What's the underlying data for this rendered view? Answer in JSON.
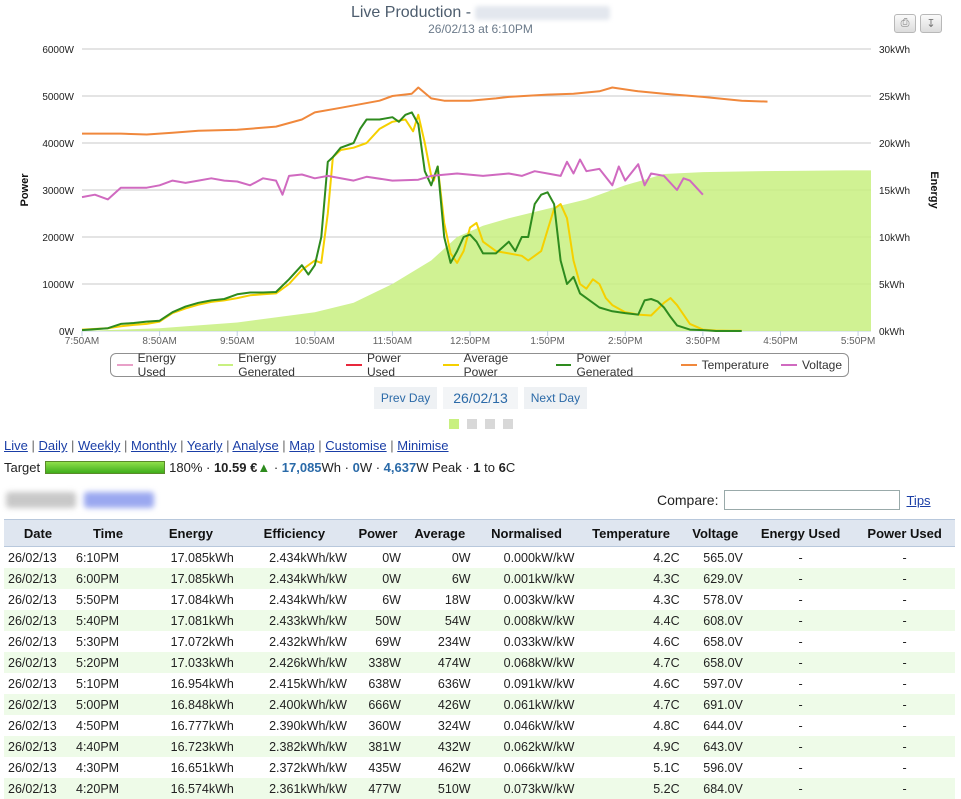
{
  "chart_header": {
    "title": "Live Production -",
    "subtitle": "26/02/13 at 6:10PM"
  },
  "chart_data": {
    "type": "line",
    "x_ticks": [
      "7:50AM",
      "8:50AM",
      "9:50AM",
      "10:50AM",
      "11:50AM",
      "12:50PM",
      "1:50PM",
      "2:50PM",
      "3:50PM",
      "4:50PM",
      "5:50PM"
    ],
    "x_range_min": [
      470,
      1080
    ],
    "y_left": {
      "label": "Power",
      "ticks": [
        "0W",
        "1000W",
        "2000W",
        "3000W",
        "4000W",
        "5000W",
        "6000W"
      ],
      "range": [
        0,
        6000
      ]
    },
    "y_right": {
      "label": "Energy",
      "ticks": [
        "0kWh",
        "5kWh",
        "10kWh",
        "15kWh",
        "20kWh",
        "25kWh",
        "30kWh"
      ],
      "range": [
        0,
        30
      ]
    },
    "grid": true,
    "legend_position": "bottom",
    "series": [
      {
        "name": "Energy Used",
        "axis": "right",
        "color": "#e8a0c8",
        "points": []
      },
      {
        "name": "Energy Generated",
        "axis": "right",
        "color": "#c8f080",
        "fill": true,
        "points": [
          [
            470,
            0
          ],
          [
            530,
            0.3
          ],
          [
            590,
            0.9
          ],
          [
            650,
            2.0
          ],
          [
            680,
            3.0
          ],
          [
            710,
            5.0
          ],
          [
            740,
            7.5
          ],
          [
            760,
            10.0
          ],
          [
            780,
            11.2
          ],
          [
            800,
            12.0
          ],
          [
            830,
            13.0
          ],
          [
            860,
            14.0
          ],
          [
            890,
            15.5
          ],
          [
            920,
            16.7
          ],
          [
            950,
            16.9
          ],
          [
            990,
            17.0
          ],
          [
            1030,
            17.05
          ],
          [
            1060,
            17.08
          ],
          [
            1080,
            17.085
          ]
        ]
      },
      {
        "name": "Power Used",
        "axis": "left",
        "color": "#e8283c",
        "points": []
      },
      {
        "name": "Average Power",
        "axis": "left",
        "color": "#f5d000",
        "points": [
          [
            470,
            30
          ],
          [
            490,
            60
          ],
          [
            500,
            100
          ],
          [
            510,
            130
          ],
          [
            520,
            150
          ],
          [
            530,
            200
          ],
          [
            540,
            380
          ],
          [
            550,
            480
          ],
          [
            560,
            560
          ],
          [
            570,
            620
          ],
          [
            580,
            650
          ],
          [
            590,
            700
          ],
          [
            600,
            760
          ],
          [
            610,
            780
          ],
          [
            620,
            800
          ],
          [
            630,
            1000
          ],
          [
            640,
            1300
          ],
          [
            650,
            1500
          ],
          [
            655,
            1450
          ],
          [
            660,
            2500
          ],
          [
            664,
            3700
          ],
          [
            670,
            3850
          ],
          [
            680,
            3900
          ],
          [
            690,
            4000
          ],
          [
            700,
            4300
          ],
          [
            710,
            4450
          ],
          [
            720,
            4500
          ],
          [
            726,
            4250
          ],
          [
            730,
            4600
          ],
          [
            735,
            4000
          ],
          [
            740,
            3300
          ],
          [
            742,
            3200
          ],
          [
            745,
            3500
          ],
          [
            750,
            2300
          ],
          [
            755,
            1650
          ],
          [
            760,
            1450
          ],
          [
            765,
            1700
          ],
          [
            770,
            2200
          ],
          [
            775,
            2300
          ],
          [
            780,
            1900
          ],
          [
            790,
            1700
          ],
          [
            800,
            1650
          ],
          [
            810,
            1600
          ],
          [
            815,
            1500
          ],
          [
            820,
            1600
          ],
          [
            825,
            1700
          ],
          [
            830,
            2150
          ],
          [
            835,
            2600
          ],
          [
            840,
            2700
          ],
          [
            845,
            2400
          ],
          [
            850,
            1500
          ],
          [
            855,
            1000
          ],
          [
            860,
            900
          ],
          [
            865,
            1100
          ],
          [
            870,
            1000
          ],
          [
            875,
            700
          ],
          [
            880,
            550
          ],
          [
            890,
            400
          ],
          [
            900,
            350
          ],
          [
            910,
            330
          ],
          [
            920,
            600
          ],
          [
            925,
            700
          ],
          [
            930,
            550
          ],
          [
            940,
            150
          ],
          [
            950,
            30
          ],
          [
            960,
            10
          ],
          [
            970,
            6
          ],
          [
            980,
            6
          ]
        ]
      },
      {
        "name": "Power Generated",
        "axis": "left",
        "color": "#2e8b1e",
        "points": [
          [
            470,
            20
          ],
          [
            490,
            60
          ],
          [
            500,
            150
          ],
          [
            510,
            170
          ],
          [
            520,
            200
          ],
          [
            530,
            220
          ],
          [
            540,
            400
          ],
          [
            550,
            520
          ],
          [
            560,
            600
          ],
          [
            570,
            650
          ],
          [
            580,
            680
          ],
          [
            590,
            780
          ],
          [
            600,
            820
          ],
          [
            610,
            820
          ],
          [
            620,
            830
          ],
          [
            630,
            1100
          ],
          [
            640,
            1400
          ],
          [
            645,
            1200
          ],
          [
            650,
            1400
          ],
          [
            655,
            2000
          ],
          [
            660,
            3600
          ],
          [
            664,
            3700
          ],
          [
            670,
            3900
          ],
          [
            680,
            4000
          ],
          [
            685,
            4300
          ],
          [
            690,
            4500
          ],
          [
            700,
            4500
          ],
          [
            710,
            4550
          ],
          [
            715,
            4450
          ],
          [
            720,
            4600
          ],
          [
            725,
            4650
          ],
          [
            730,
            4400
          ],
          [
            735,
            3400
          ],
          [
            740,
            3100
          ],
          [
            745,
            3500
          ],
          [
            750,
            2000
          ],
          [
            755,
            1450
          ],
          [
            760,
            1700
          ],
          [
            765,
            2000
          ],
          [
            770,
            2050
          ],
          [
            775,
            1900
          ],
          [
            780,
            1650
          ],
          [
            790,
            1650
          ],
          [
            800,
            1900
          ],
          [
            805,
            1700
          ],
          [
            810,
            2000
          ],
          [
            815,
            2000
          ],
          [
            820,
            2700
          ],
          [
            825,
            2900
          ],
          [
            830,
            2950
          ],
          [
            835,
            2700
          ],
          [
            840,
            1500
          ],
          [
            845,
            1000
          ],
          [
            850,
            1150
          ],
          [
            855,
            800
          ],
          [
            860,
            700
          ],
          [
            870,
            500
          ],
          [
            880,
            420
          ],
          [
            890,
            380
          ],
          [
            900,
            350
          ],
          [
            905,
            650
          ],
          [
            910,
            680
          ],
          [
            915,
            630
          ],
          [
            920,
            500
          ],
          [
            925,
            300
          ],
          [
            930,
            120
          ],
          [
            940,
            30
          ],
          [
            950,
            20
          ],
          [
            960,
            0
          ],
          [
            970,
            0
          ],
          [
            980,
            0
          ]
        ]
      },
      {
        "name": "Temperature",
        "axis": "left",
        "color": "#f0883c",
        "points": [
          [
            470,
            4200
          ],
          [
            500,
            4200
          ],
          [
            520,
            4180
          ],
          [
            540,
            4220
          ],
          [
            560,
            4260
          ],
          [
            590,
            4280
          ],
          [
            620,
            4350
          ],
          [
            640,
            4500
          ],
          [
            650,
            4650
          ],
          [
            670,
            4750
          ],
          [
            700,
            4900
          ],
          [
            710,
            5000
          ],
          [
            725,
            5050
          ],
          [
            730,
            5180
          ],
          [
            740,
            4950
          ],
          [
            750,
            4900
          ],
          [
            770,
            4900
          ],
          [
            790,
            4950
          ],
          [
            800,
            4980
          ],
          [
            830,
            5030
          ],
          [
            850,
            5050
          ],
          [
            870,
            5100
          ],
          [
            880,
            5180
          ],
          [
            900,
            5100
          ],
          [
            920,
            5050
          ],
          [
            950,
            4980
          ],
          [
            980,
            4900
          ],
          [
            1000,
            4880
          ]
        ]
      },
      {
        "name": "Voltage",
        "axis": "left",
        "color": "#d06ac0",
        "points": [
          [
            470,
            2850
          ],
          [
            480,
            2900
          ],
          [
            490,
            2800
          ],
          [
            500,
            3050
          ],
          [
            520,
            3050
          ],
          [
            530,
            3100
          ],
          [
            540,
            3200
          ],
          [
            550,
            3150
          ],
          [
            560,
            3200
          ],
          [
            570,
            3250
          ],
          [
            580,
            3200
          ],
          [
            590,
            3180
          ],
          [
            600,
            3100
          ],
          [
            610,
            3250
          ],
          [
            620,
            3200
          ],
          [
            625,
            2900
          ],
          [
            630,
            3300
          ],
          [
            640,
            3330
          ],
          [
            650,
            3250
          ],
          [
            660,
            3300
          ],
          [
            680,
            3200
          ],
          [
            690,
            3280
          ],
          [
            710,
            3200
          ],
          [
            730,
            3220
          ],
          [
            740,
            3300
          ],
          [
            760,
            3350
          ],
          [
            780,
            3300
          ],
          [
            800,
            3350
          ],
          [
            810,
            3300
          ],
          [
            820,
            3400
          ],
          [
            830,
            3350
          ],
          [
            840,
            3300
          ],
          [
            845,
            3600
          ],
          [
            850,
            3350
          ],
          [
            855,
            3650
          ],
          [
            860,
            3400
          ],
          [
            870,
            3450
          ],
          [
            880,
            3100
          ],
          [
            885,
            3500
          ],
          [
            890,
            3200
          ],
          [
            900,
            3550
          ],
          [
            905,
            3100
          ],
          [
            910,
            3350
          ],
          [
            920,
            3300
          ],
          [
            930,
            3000
          ],
          [
            935,
            3250
          ],
          [
            940,
            3200
          ],
          [
            950,
            2900
          ]
        ]
      }
    ]
  },
  "legend": [
    {
      "label": "Energy Used",
      "color": "#e8a0c8"
    },
    {
      "label": "Energy Generated",
      "color": "#c8f080"
    },
    {
      "label": "Power Used",
      "color": "#e8283c"
    },
    {
      "label": "Average Power",
      "color": "#f5d000"
    },
    {
      "label": "Power Generated",
      "color": "#2e8b1e"
    },
    {
      "label": "Temperature",
      "color": "#f0883c"
    },
    {
      "label": "Voltage",
      "color": "#d06ac0"
    }
  ],
  "daynav": {
    "prev": "Prev Day",
    "current": "26/02/13",
    "next": "Next Day"
  },
  "nav": {
    "live": "Live",
    "daily": "Daily",
    "weekly": "Weekly",
    "monthly": "Monthly",
    "yearly": "Yearly",
    "analyse": "Analyse",
    "map": "Map",
    "customise": "Customise",
    "minimise": "Minimise"
  },
  "target": {
    "label": "Target",
    "progress": 1.0,
    "percent": "180%",
    "money": "10.59 €",
    "energy": "17,085",
    "energy_unit": "Wh",
    "power": "0",
    "power_unit": "W",
    "peak": "4,637",
    "peak_unit": "W Peak",
    "temp_low": "1",
    "to": "to",
    "temp_high": "6",
    "temp_unit": "C"
  },
  "compare": {
    "label": "Compare:",
    "value": "",
    "tips": "Tips"
  },
  "table": {
    "headers": [
      "Date",
      "Time",
      "Energy",
      "Efficiency",
      "Power",
      "Average",
      "Normalised",
      "Temperature",
      "Voltage",
      "Energy Used",
      "Power Used"
    ],
    "rows": [
      [
        "26/02/13",
        "6:10PM",
        "17.085kWh",
        "2.434kWh/kW",
        "0W",
        "0W",
        "0.000kW/kW",
        "4.2C",
        "565.0V",
        "-",
        "-"
      ],
      [
        "26/02/13",
        "6:00PM",
        "17.085kWh",
        "2.434kWh/kW",
        "0W",
        "6W",
        "0.001kW/kW",
        "4.3C",
        "629.0V",
        "-",
        "-"
      ],
      [
        "26/02/13",
        "5:50PM",
        "17.084kWh",
        "2.434kWh/kW",
        "6W",
        "18W",
        "0.003kW/kW",
        "4.3C",
        "578.0V",
        "-",
        "-"
      ],
      [
        "26/02/13",
        "5:40PM",
        "17.081kWh",
        "2.433kWh/kW",
        "50W",
        "54W",
        "0.008kW/kW",
        "4.4C",
        "608.0V",
        "-",
        "-"
      ],
      [
        "26/02/13",
        "5:30PM",
        "17.072kWh",
        "2.432kWh/kW",
        "69W",
        "234W",
        "0.033kW/kW",
        "4.6C",
        "658.0V",
        "-",
        "-"
      ],
      [
        "26/02/13",
        "5:20PM",
        "17.033kWh",
        "2.426kWh/kW",
        "338W",
        "474W",
        "0.068kW/kW",
        "4.7C",
        "658.0V",
        "-",
        "-"
      ],
      [
        "26/02/13",
        "5:10PM",
        "16.954kWh",
        "2.415kWh/kW",
        "638W",
        "636W",
        "0.091kW/kW",
        "4.6C",
        "597.0V",
        "-",
        "-"
      ],
      [
        "26/02/13",
        "5:00PM",
        "16.848kWh",
        "2.400kWh/kW",
        "666W",
        "426W",
        "0.061kW/kW",
        "4.7C",
        "691.0V",
        "-",
        "-"
      ],
      [
        "26/02/13",
        "4:50PM",
        "16.777kWh",
        "2.390kWh/kW",
        "360W",
        "324W",
        "0.046kW/kW",
        "4.8C",
        "644.0V",
        "-",
        "-"
      ],
      [
        "26/02/13",
        "4:40PM",
        "16.723kWh",
        "2.382kWh/kW",
        "381W",
        "432W",
        "0.062kW/kW",
        "4.9C",
        "643.0V",
        "-",
        "-"
      ],
      [
        "26/02/13",
        "4:30PM",
        "16.651kWh",
        "2.372kWh/kW",
        "435W",
        "462W",
        "0.066kW/kW",
        "5.1C",
        "596.0V",
        "-",
        "-"
      ],
      [
        "26/02/13",
        "4:20PM",
        "16.574kWh",
        "2.361kWh/kW",
        "477W",
        "510W",
        "0.073kW/kW",
        "5.2C",
        "684.0V",
        "-",
        "-"
      ]
    ]
  }
}
